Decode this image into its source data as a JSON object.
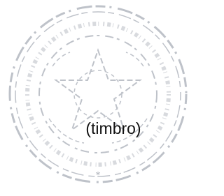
{
  "stamp": {
    "label": "(timbro)"
  }
}
